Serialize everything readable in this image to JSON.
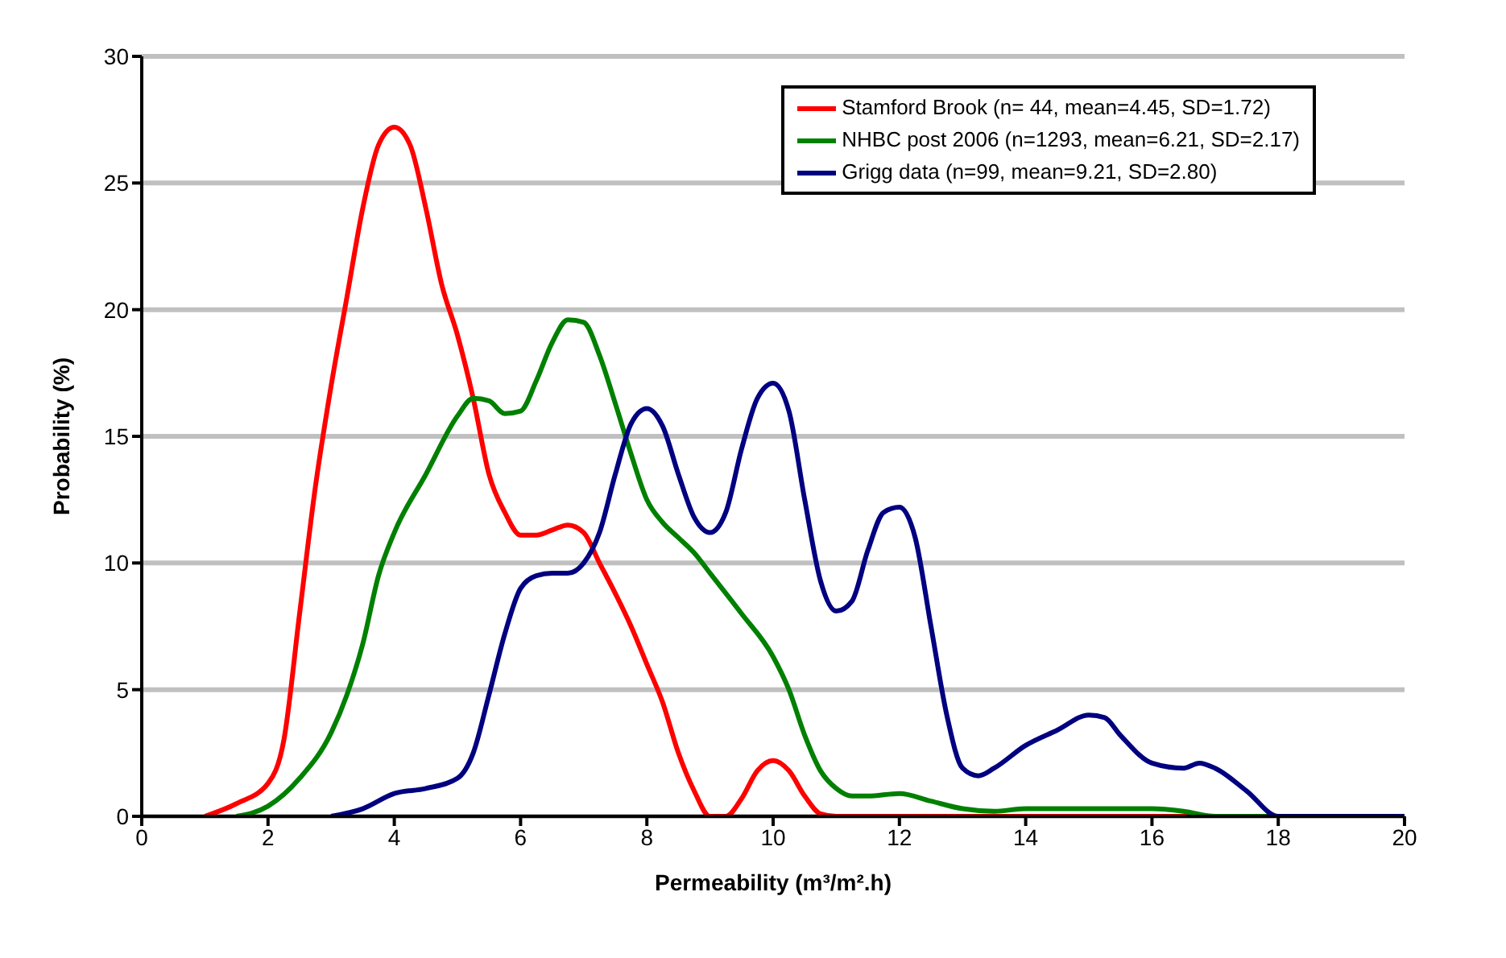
{
  "chart_data": {
    "type": "line",
    "xlabel": "Permeability (m³/m².h)",
    "ylabel": "Probability  (%)",
    "xlim": [
      0,
      20
    ],
    "xticks": [
      0,
      2,
      4,
      6,
      8,
      10,
      12,
      14,
      16,
      18,
      20
    ],
    "ylim": [
      0,
      30
    ],
    "yticks": [
      0,
      5,
      10,
      15,
      20,
      25,
      30
    ],
    "grid": "y",
    "legend": "top right",
    "marker": "none",
    "line_style": "solid",
    "series": [
      {
        "name": "Stamford Brook (n= 44, mean=4.45, SD=1.72)",
        "color": "#ff0000",
        "x": [
          1,
          1.5,
          2,
          2.25,
          2.5,
          2.75,
          3,
          3.25,
          3.5,
          3.75,
          4,
          4.25,
          4.5,
          4.75,
          5,
          5.25,
          5.5,
          5.75,
          6,
          6.25,
          6.5,
          6.75,
          7,
          7.25,
          7.5,
          7.75,
          8,
          8.25,
          8.5,
          8.75,
          9,
          9.25,
          9.5,
          9.75,
          10,
          10.25,
          10.5,
          10.75,
          11,
          20
        ],
        "values": [
          0,
          0.5,
          1.3,
          3,
          8,
          13,
          17,
          20.5,
          24,
          26.5,
          27.2,
          26.5,
          24,
          21,
          19,
          16.5,
          13.5,
          12,
          11.1,
          11.1,
          11.3,
          11.5,
          11.2,
          10,
          8.8,
          7.5,
          6,
          4.5,
          2.5,
          1,
          0,
          0,
          0.7,
          1.8,
          2.2,
          1.8,
          0.8,
          0.1,
          0,
          0
        ]
      },
      {
        "name": "NHBC post 2006 (n=1293, mean=6.21, SD=2.17)",
        "color": "#008000",
        "x": [
          1.5,
          2,
          2.5,
          3,
          3.25,
          3.5,
          3.75,
          4,
          4.5,
          5,
          5.25,
          5.5,
          5.75,
          6,
          6.25,
          6.5,
          6.75,
          7,
          7.25,
          7.5,
          7.75,
          8,
          8.25,
          8.5,
          8.75,
          9,
          9.5,
          10,
          10.25,
          10.5,
          10.75,
          11,
          11.25,
          11.5,
          12,
          12.5,
          13,
          13.5,
          14,
          14.5,
          15,
          16,
          16.5,
          17,
          20
        ],
        "values": [
          0,
          0.4,
          1.5,
          3.3,
          4.8,
          6.8,
          9.5,
          11.2,
          13.5,
          15.8,
          16.5,
          16.4,
          15.9,
          16,
          17.2,
          18.7,
          19.6,
          19.5,
          18.2,
          16.3,
          14.3,
          12.5,
          11.6,
          11,
          10.4,
          9.6,
          8,
          6.3,
          5,
          3.2,
          1.8,
          1.1,
          0.8,
          0.8,
          0.9,
          0.6,
          0.3,
          0.2,
          0.3,
          0.3,
          0.3,
          0.3,
          0.2,
          0,
          0
        ]
      },
      {
        "name": "Grigg data (n=99, mean=9.21, SD=2.80)",
        "color": "#000080",
        "x": [
          3,
          3.5,
          4,
          4.5,
          5,
          5.25,
          5.5,
          5.75,
          6,
          6.25,
          6.5,
          6.75,
          7,
          7.25,
          7.5,
          7.75,
          8,
          8.25,
          8.5,
          8.75,
          9,
          9.25,
          9.5,
          9.75,
          10,
          10.25,
          10.5,
          10.75,
          11,
          11.25,
          11.5,
          11.75,
          12,
          12.25,
          12.5,
          12.75,
          13,
          13.25,
          13.5,
          14,
          14.5,
          15,
          15.25,
          15.5,
          16,
          16.5,
          16.75,
          17,
          17.5,
          18,
          20
        ],
        "values": [
          0,
          0.3,
          0.9,
          1.1,
          1.5,
          2.5,
          4.8,
          7.2,
          9,
          9.5,
          9.6,
          9.6,
          10,
          11.2,
          13.5,
          15.5,
          16.1,
          15.4,
          13.5,
          11.8,
          11.2,
          12,
          14.5,
          16.5,
          17.1,
          16,
          12.5,
          9.3,
          8.1,
          8.5,
          10.5,
          12,
          12.2,
          11,
          7.5,
          4,
          1.9,
          1.6,
          1.9,
          2.8,
          3.4,
          4,
          3.9,
          3.2,
          2.1,
          1.9,
          2.1,
          1.9,
          1,
          0,
          0
        ]
      }
    ]
  }
}
